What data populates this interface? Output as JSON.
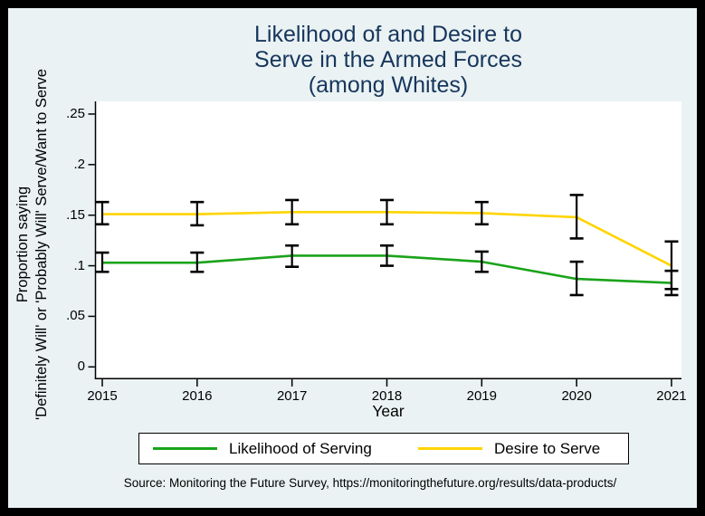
{
  "chart_data": {
    "type": "line",
    "title": "Likelihood of and Desire to Serve in the Armed Forces (among Whites)",
    "title_lines": [
      "Likelihood of and Desire to",
      "Serve in the Armed Forces",
      "(among Whites)"
    ],
    "xlabel": "Year",
    "ylabel": "Proportion saying 'Definitely Will' or 'Probably Will' Serve/Want to Serve",
    "ylabel_lines": [
      "Proportion saying",
      "'Definitely Will' or 'Probably Will' Serve/Want to Serve"
    ],
    "source_note": "Source: Monitoring the Future Survey, https://monitoringthefuture.org/results/data-products/",
    "x": [
      2015,
      2016,
      2017,
      2018,
      2019,
      2020,
      2021
    ],
    "xtick_labels": [
      "2015",
      "2016",
      "2017",
      "2018",
      "2019",
      "2020",
      "2021"
    ],
    "ytick_values": [
      0,
      0.05,
      0.1,
      0.15,
      0.2,
      0.25
    ],
    "ytick_labels": [
      "0",
      ".05",
      ".1",
      ".15",
      ".2",
      ".25"
    ],
    "xlim": [
      2015,
      2021
    ],
    "ylim": [
      0,
      0.26
    ],
    "grid": false,
    "legend_position": "bottom",
    "background_color": "#eaf2f3",
    "plot_background_color": "#ffffff",
    "title_color": "#17365d",
    "axis_color": "#000000",
    "error_bar_color": "#000000",
    "series": [
      {
        "name": "Likelihood of Serving",
        "color": "#1aa31a",
        "values": [
          0.103,
          0.103,
          0.11,
          0.11,
          0.104,
          0.087,
          0.083
        ],
        "ci_low": [
          0.094,
          0.094,
          0.099,
          0.1,
          0.094,
          0.071,
          0.071
        ],
        "ci_high": [
          0.113,
          0.113,
          0.12,
          0.12,
          0.114,
          0.104,
          0.095
        ]
      },
      {
        "name": "Desire to Serve",
        "color": "#ffd400",
        "values": [
          0.151,
          0.151,
          0.153,
          0.153,
          0.152,
          0.148,
          0.1
        ],
        "ci_low": [
          0.141,
          0.14,
          0.141,
          0.141,
          0.141,
          0.127,
          0.077
        ],
        "ci_high": [
          0.163,
          0.163,
          0.165,
          0.165,
          0.163,
          0.17,
          0.124
        ]
      }
    ]
  }
}
